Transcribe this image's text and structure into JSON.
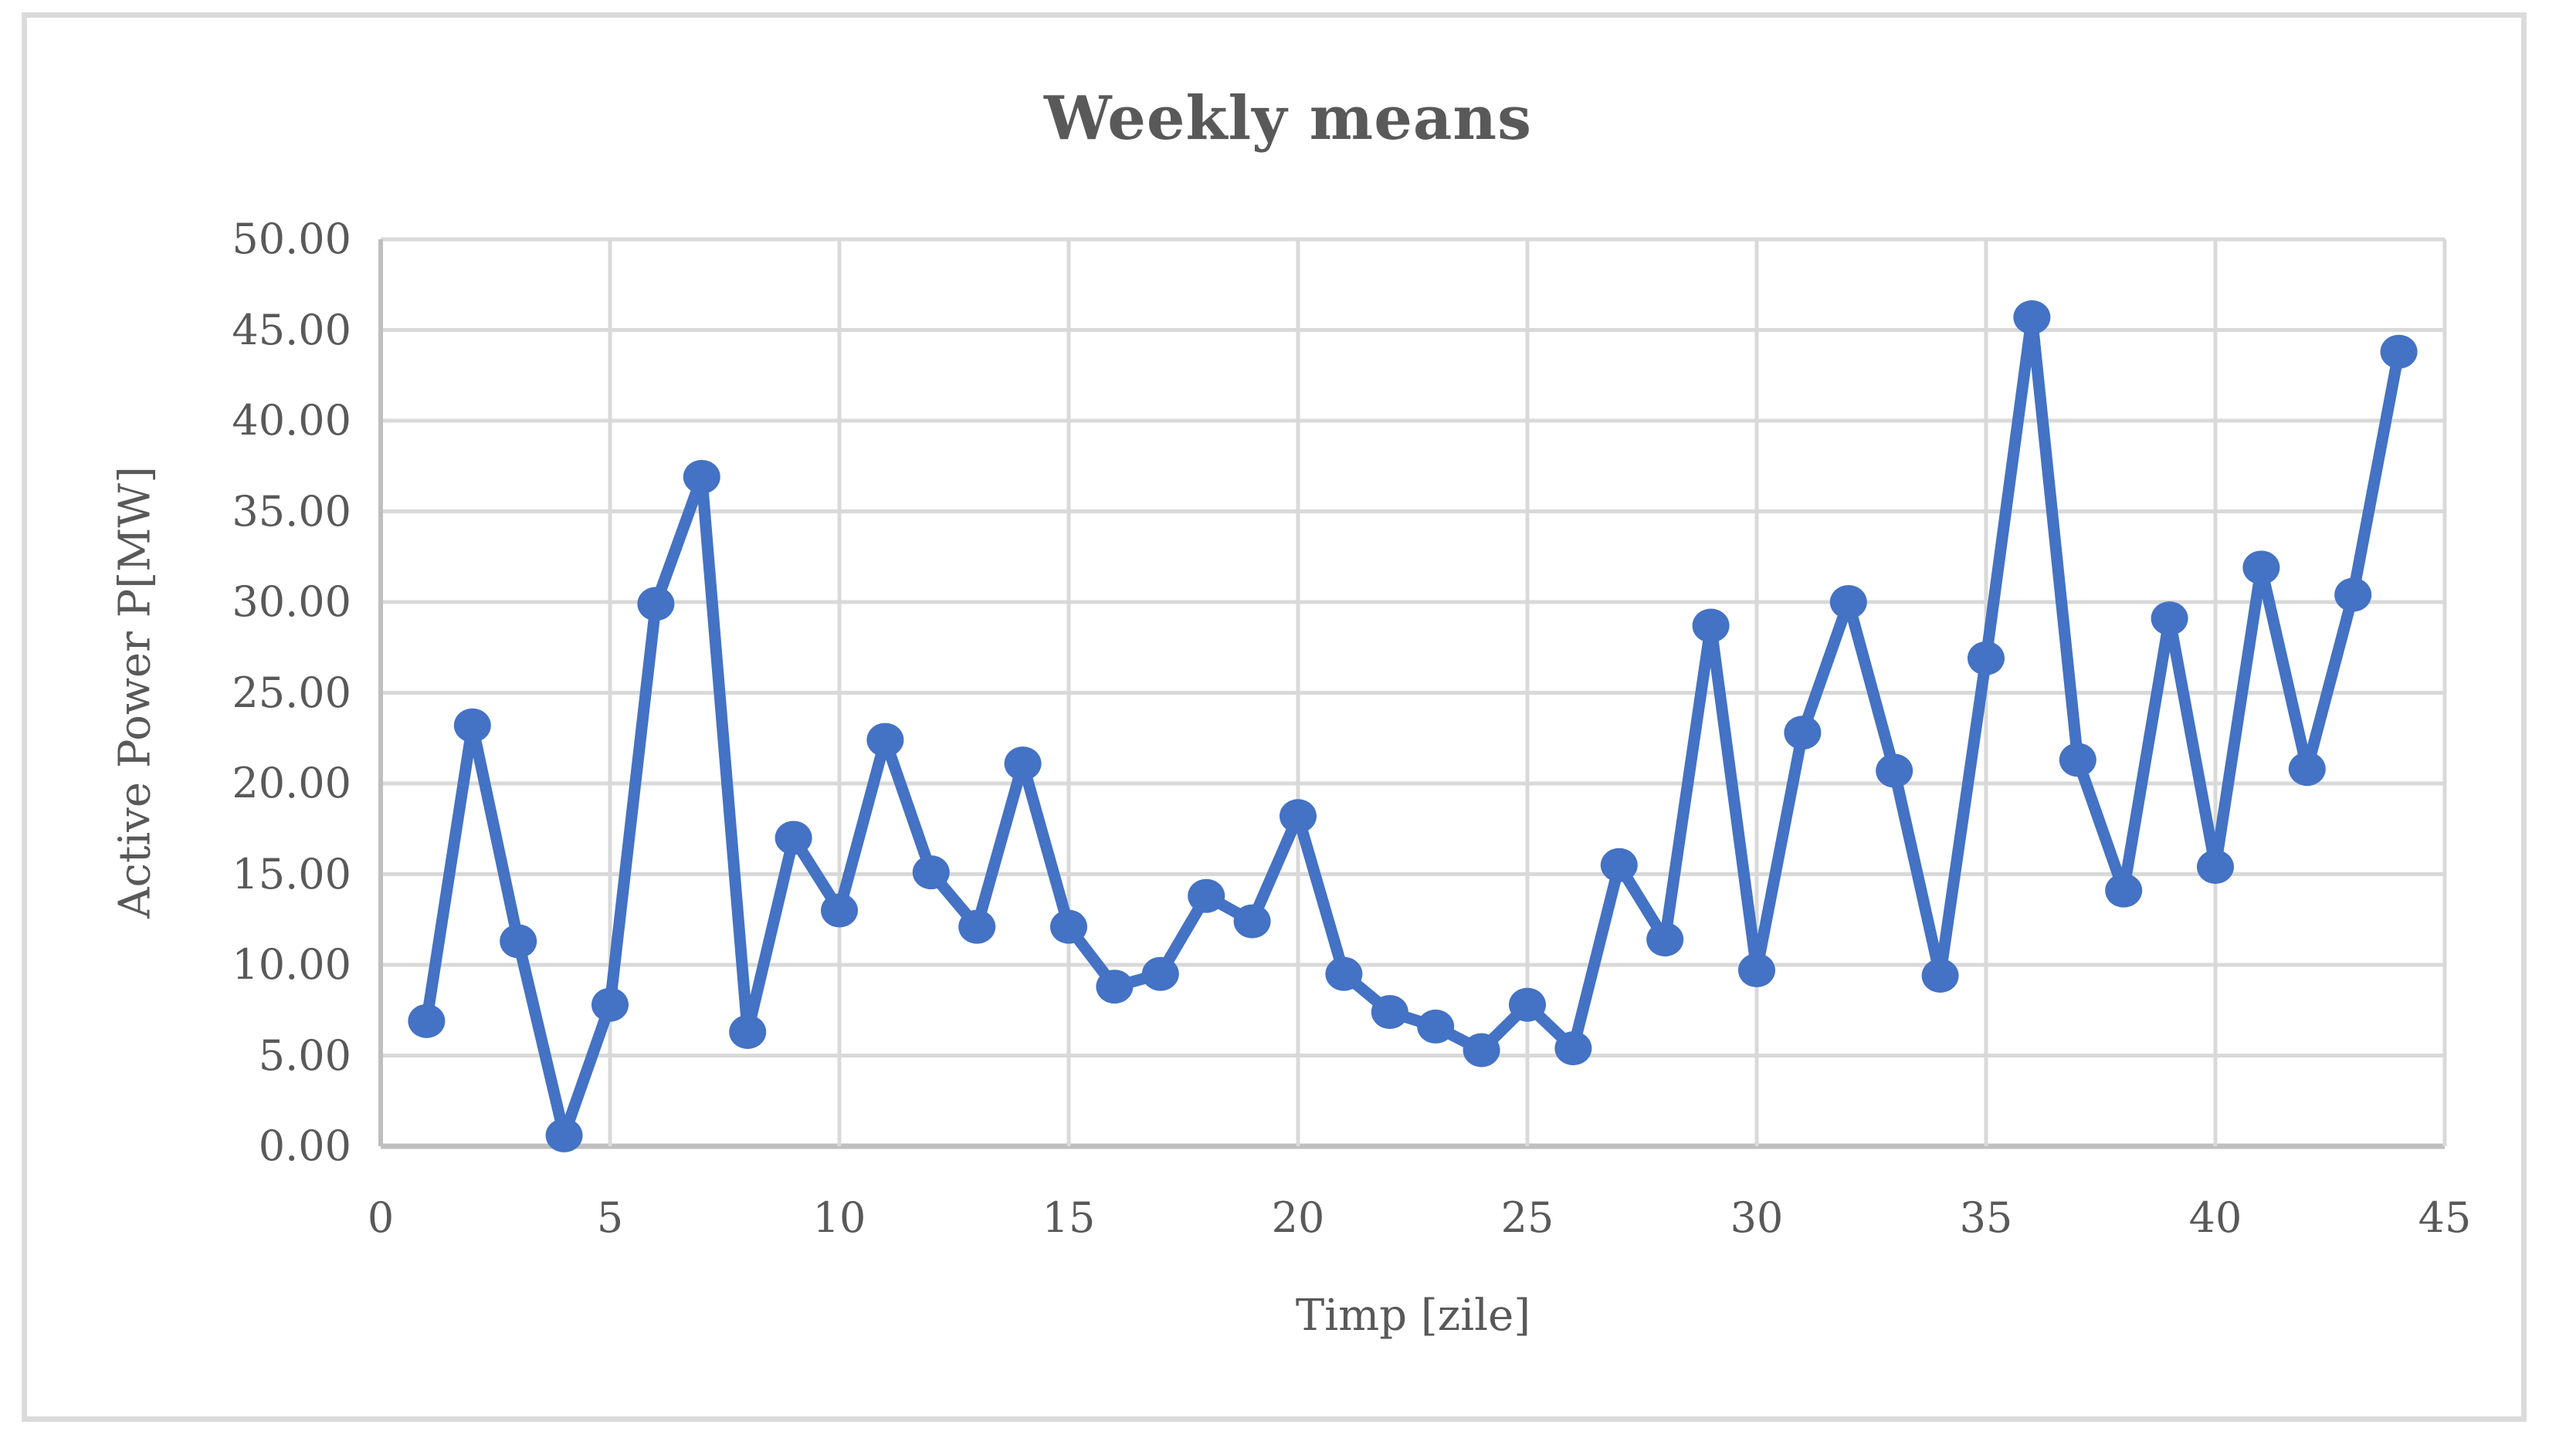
{
  "chart_data": {
    "type": "line",
    "title": "Weekly means",
    "xlabel": "Timp [zile]",
    "ylabel": "Active Power P[MW]",
    "xlim": [
      0,
      45
    ],
    "ylim": [
      0,
      50
    ],
    "x_ticks": [
      0,
      5,
      10,
      15,
      20,
      25,
      30,
      35,
      40,
      45
    ],
    "y_ticks": [
      0,
      5,
      10,
      15,
      20,
      25,
      30,
      35,
      40,
      45,
      50
    ],
    "y_tick_decimals": 2,
    "grid": true,
    "legend_position": "none",
    "series": [
      {
        "name": "Weekly means",
        "color": "#4472C4",
        "marker": "circle",
        "x": [
          1,
          2,
          3,
          4,
          5,
          6,
          7,
          8,
          9,
          10,
          11,
          12,
          13,
          14,
          15,
          16,
          17,
          18,
          19,
          20,
          21,
          22,
          23,
          24,
          25,
          26,
          27,
          28,
          29,
          30,
          31,
          32,
          33,
          34,
          35,
          36,
          37,
          38,
          39,
          40,
          41,
          42,
          43,
          44
        ],
        "values": [
          6.9,
          23.2,
          11.3,
          0.6,
          7.8,
          29.9,
          36.9,
          6.3,
          17.0,
          13.0,
          22.4,
          15.1,
          12.1,
          21.1,
          12.1,
          8.8,
          9.5,
          13.8,
          12.4,
          18.2,
          9.5,
          7.4,
          6.6,
          5.3,
          7.8,
          5.4,
          15.5,
          11.4,
          28.7,
          9.7,
          22.8,
          30.0,
          20.7,
          9.4,
          26.9,
          45.7,
          21.3,
          14.1,
          29.1,
          15.4,
          31.9,
          20.8,
          30.4,
          43.8
        ]
      }
    ]
  },
  "style": {
    "accent": "#4472C4",
    "grid_color": "#D9D9D9",
    "axis_color": "#BFBFBF",
    "text_color": "#595959",
    "frame_color": "#DBDBDB",
    "background": "#FFFFFF"
  }
}
